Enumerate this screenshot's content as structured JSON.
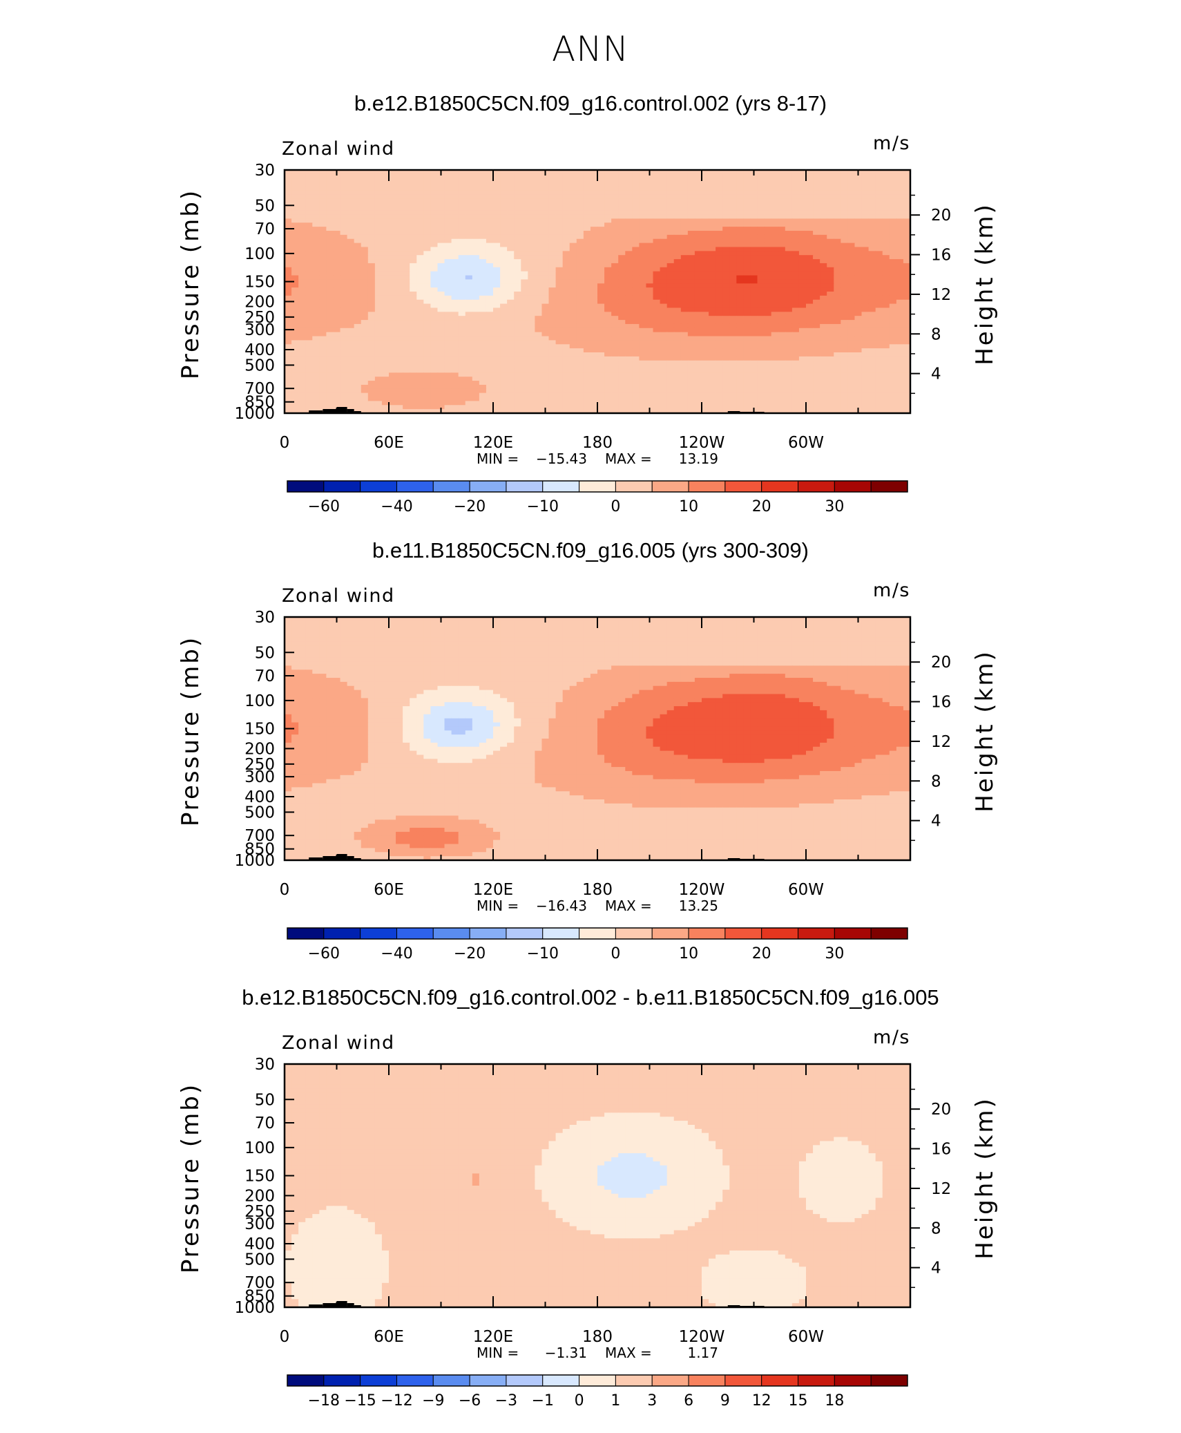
{
  "page_title": "ANN",
  "panels": [
    {
      "title": "b.e12.B1850C5CN.f09_g16.control.002 (yrs 8-17)",
      "variable_label": "Zonal wind",
      "units": "m/s",
      "min_label": "MIN =",
      "min_value": "−15.43",
      "max_label": "MAX =",
      "max_value": "13.19",
      "colorbar_labels": [
        "−60",
        "−40",
        "−20",
        "−10",
        "0",
        "10",
        "20",
        "30"
      ]
    },
    {
      "title": "b.e11.B1850C5CN.f09_g16.005 (yrs 300-309)",
      "variable_label": "Zonal wind",
      "units": "m/s",
      "min_label": "MIN =",
      "min_value": "−16.43",
      "max_label": "MAX =",
      "max_value": "13.25",
      "colorbar_labels": [
        "−60",
        "−40",
        "−20",
        "−10",
        "0",
        "10",
        "20",
        "30"
      ]
    },
    {
      "title": "b.e12.B1850C5CN.f09_g16.control.002 - b.e11.B1850C5CN.f09_g16.005",
      "variable_label": "Zonal wind",
      "units": "m/s",
      "min_label": "MIN =",
      "min_value": "−1.31",
      "max_label": "MAX =",
      "max_value": "1.17",
      "colorbar_labels": [
        "−18",
        "−15",
        "−12",
        "−9",
        "−6",
        "−3",
        "−1",
        "0",
        "1",
        "3",
        "6",
        "9",
        "12",
        "15",
        "18"
      ]
    }
  ],
  "chart_data": [
    {
      "type": "heatmap",
      "title": "b.e12.B1850C5CN.f09_g16.control.002 (yrs 8-17)",
      "xlabel": "",
      "ylabel": "Pressure (mb)",
      "ylabel_right": "Height (km)",
      "x_ticks": [
        "0",
        "60E",
        "120E",
        "180",
        "120W",
        "60W"
      ],
      "x_tick_lon": [
        0,
        60,
        120,
        180,
        240,
        300
      ],
      "xlim": [
        0,
        360
      ],
      "y_ticks": [
        30,
        50,
        70,
        100,
        150,
        200,
        250,
        300,
        400,
        500,
        700,
        850,
        1000
      ],
      "ylim": [
        1000,
        30
      ],
      "y_scale": "log",
      "right_ticks": [
        4,
        8,
        12,
        16,
        20
      ],
      "min": -15.43,
      "max": 13.19,
      "levels": [
        -70,
        -60,
        -50,
        -40,
        -30,
        -20,
        -15,
        -10,
        -5,
        0,
        5,
        10,
        15,
        20,
        25,
        30,
        35
      ],
      "features": [
        {
          "kind": "jet",
          "lon": 282,
          "p": 135,
          "peak": 13.2
        },
        {
          "kind": "jet",
          "lon": 218,
          "p": 140,
          "peak": 9
        },
        {
          "kind": "jet",
          "lon": 5,
          "p": 140,
          "peak": 6
        },
        {
          "kind": "easterly",
          "lon": 105,
          "p": 145,
          "peak": -15.4
        },
        {
          "kind": "westerly-low",
          "lon": 80,
          "p": 720,
          "peak": 7
        }
      ]
    },
    {
      "type": "heatmap",
      "title": "b.e11.B1850C5CN.f09_g16.005 (yrs 300-309)",
      "xlabel": "",
      "ylabel": "Pressure (mb)",
      "ylabel_right": "Height (km)",
      "x_ticks": [
        "0",
        "60E",
        "120E",
        "180",
        "120W",
        "60W"
      ],
      "x_tick_lon": [
        0,
        60,
        120,
        180,
        240,
        300
      ],
      "xlim": [
        0,
        360
      ],
      "y_ticks": [
        30,
        50,
        70,
        100,
        150,
        200,
        250,
        300,
        400,
        500,
        700,
        850,
        1000
      ],
      "ylim": [
        1000,
        30
      ],
      "y_scale": "log",
      "right_ticks": [
        4,
        8,
        12,
        16,
        20
      ],
      "min": -16.43,
      "max": 13.25,
      "levels": [
        -70,
        -60,
        -50,
        -40,
        -30,
        -20,
        -15,
        -10,
        -5,
        0,
        5,
        10,
        15,
        20,
        25,
        30,
        35
      ],
      "features": [
        {
          "kind": "jet",
          "lon": 282,
          "p": 135,
          "peak": 13.25
        },
        {
          "kind": "jet",
          "lon": 215,
          "p": 140,
          "peak": 9
        },
        {
          "kind": "jet",
          "lon": 5,
          "p": 140,
          "peak": 6
        },
        {
          "kind": "easterly",
          "lon": 100,
          "p": 145,
          "peak": -16.4
        },
        {
          "kind": "westerly-low",
          "lon": 82,
          "p": 720,
          "peak": 10
        }
      ]
    },
    {
      "type": "heatmap",
      "title": "b.e12.B1850C5CN.f09_g16.control.002 - b.e11.B1850C5CN.f09_g16.005",
      "xlabel": "",
      "ylabel": "Pressure (mb)",
      "ylabel_right": "Height (km)",
      "x_ticks": [
        "0",
        "60E",
        "120E",
        "180",
        "120W",
        "60W"
      ],
      "x_tick_lon": [
        0,
        60,
        120,
        180,
        240,
        300
      ],
      "xlim": [
        0,
        360
      ],
      "y_ticks": [
        30,
        50,
        70,
        100,
        150,
        200,
        250,
        300,
        400,
        500,
        700,
        850,
        1000
      ],
      "ylim": [
        1000,
        30
      ],
      "y_scale": "log",
      "right_ticks": [
        4,
        8,
        12,
        16,
        20
      ],
      "min": -1.31,
      "max": 1.17,
      "levels": [
        -21,
        -18,
        -15,
        -12,
        -9,
        -6,
        -3,
        -1,
        0,
        1,
        3,
        6,
        9,
        12,
        15,
        18,
        21
      ],
      "features": [
        {
          "kind": "negative",
          "lon": 200,
          "p": 150,
          "peak": -1.31
        },
        {
          "kind": "positive",
          "lon": 110,
          "p": 160,
          "peak": 1.17
        },
        {
          "kind": "positive",
          "lon": 60,
          "p": 200,
          "peak": 1.0
        }
      ]
    }
  ],
  "palettes": {
    "wind": [
      "#000c7d",
      "#0021b0",
      "#0d3fd6",
      "#2e62ec",
      "#5a8cf0",
      "#87aef5",
      "#b3c9fb",
      "#d8e8fe",
      "#feebd9",
      "#fccbb1",
      "#fba886",
      "#f8825e",
      "#f2573a",
      "#e5361f",
      "#c81a0f",
      "#a70604",
      "#7e0000"
    ],
    "diff": [
      "#000c7d",
      "#0021b0",
      "#0d3fd6",
      "#2e62ec",
      "#5a8cf0",
      "#87aef5",
      "#b3c9fb",
      "#d8e8fe",
      "#feebd9",
      "#fccbb1",
      "#fba886",
      "#f8825e",
      "#f2573a",
      "#e5361f",
      "#c81a0f",
      "#a70604",
      "#7e0000"
    ],
    "land": "#000000"
  }
}
